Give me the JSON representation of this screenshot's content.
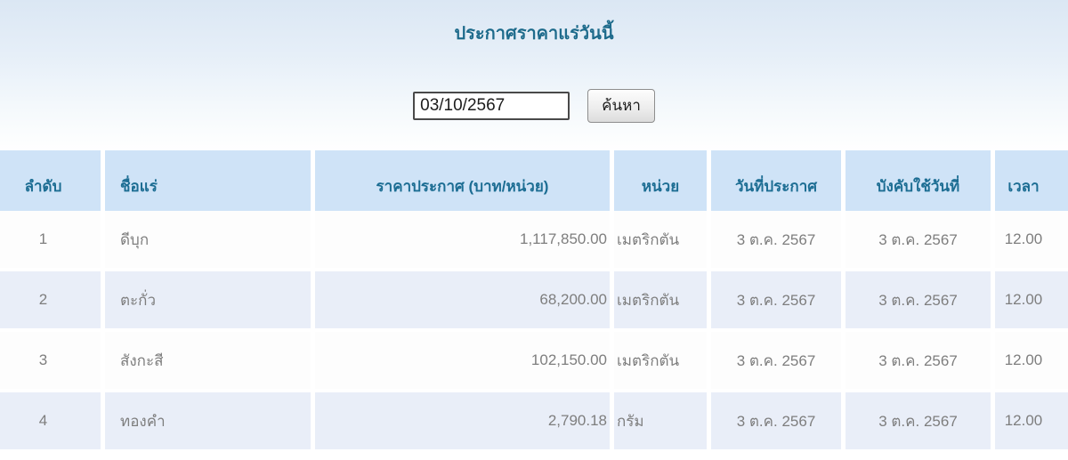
{
  "page": {
    "title": "ประกาศราคาแร่วันนี้"
  },
  "search": {
    "date_value": "03/10/2567",
    "button_label": "ค้นหา"
  },
  "table": {
    "headers": [
      "ลำดับ",
      "ชื่อแร่",
      "ราคาประกาศ (บาท/หน่วย)",
      "หน่วย",
      "วันที่ประกาศ",
      "บังคับใช้วันที่",
      "เวลา"
    ],
    "rows": [
      [
        "1",
        "ดีบุก",
        "1,117,850.00",
        "เมตริกตัน",
        "3 ต.ค. 2567",
        "3 ต.ค. 2567",
        "12.00"
      ],
      [
        "2",
        "ตะกั่ว",
        "68,200.00",
        "เมตริกตัน",
        "3 ต.ค. 2567",
        "3 ต.ค. 2567",
        "12.00"
      ],
      [
        "3",
        "สังกะสี",
        "102,150.00",
        "เมตริกตัน",
        "3 ต.ค. 2567",
        "3 ต.ค. 2567",
        "12.00"
      ],
      [
        "4",
        "ทองคำ",
        "2,790.18",
        "กรัม",
        "3 ต.ค. 2567",
        "3 ต.ค. 2567",
        "12.00"
      ]
    ]
  },
  "colors": {
    "title_text": "#1e6b8c",
    "header_bg": "#cfe3f7",
    "header_text": "#1c6d93",
    "row_even_bg": "#e9eef8",
    "row_odd_bg": "#fdfdfd",
    "data_text": "#7e7e7e",
    "page_top_bg": "#dbe7f4"
  }
}
